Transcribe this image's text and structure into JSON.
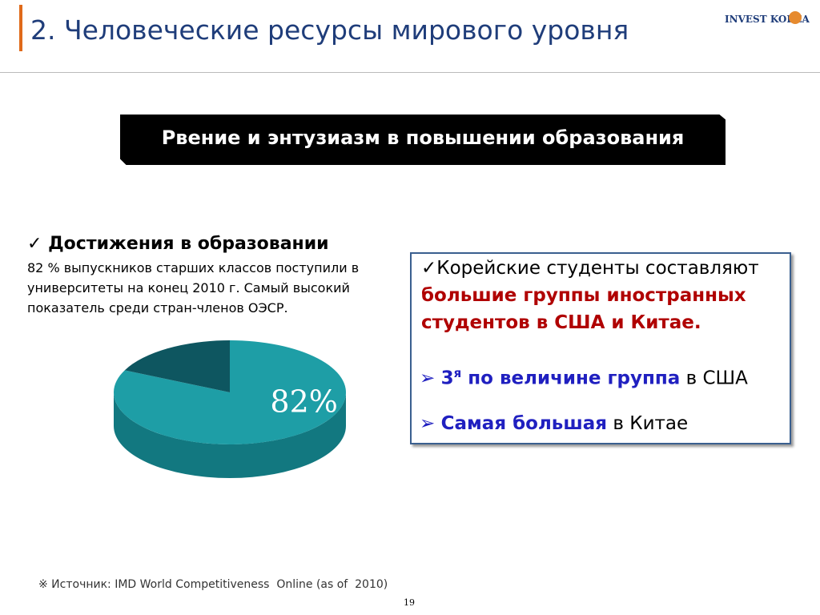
{
  "header": {
    "title": "2. Человеческие ресурсы мирового уровня",
    "logo": "INVEST KOREA"
  },
  "banner": "Рвение и энтузиазм в повышении образования",
  "left": {
    "heading": "✓ Достижения в образовании",
    "text": "82 % выпускников старших классов поступили в университеты на конец 2010 г. Самый высокий показатель среди стран-членов ОЭСР."
  },
  "box": {
    "line1_a": "✓Корейские студенты составляют ",
    "line1_b": "большие группы иностранных студентов в США и Китае.",
    "b1_marker": "➢ ",
    "b1_a": "3",
    "b1_sup": "я",
    "b1_b": " по величине группа",
    "b1_c": " в США",
    "b2_marker": "➢ ",
    "b2_a": "Самая большая",
    "b2_b": " в Китае"
  },
  "chart_data": {
    "type": "pie",
    "values": [
      82,
      18
    ],
    "value_labels": [
      "82%",
      null
    ],
    "colors": [
      "#1e9ea6",
      "#0e5660"
    ]
  },
  "footer": {
    "source": "※ Источник: IMD World Competitiveness  Online (as of  2010)",
    "page": "19"
  }
}
